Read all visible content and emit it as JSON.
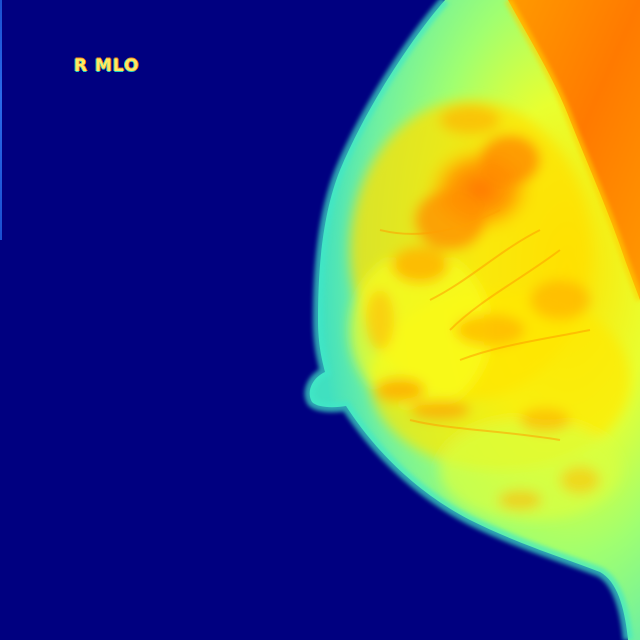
{
  "image": {
    "view_label": "R MLO",
    "colormap": "jet",
    "colors": {
      "background": "#000080",
      "skin_edge": "#40e0c0",
      "fatty_tissue": "#80ff80",
      "glandular_tissue": "#ffd000",
      "dense_tissue": "#ff8000",
      "muscle": "#ff7000"
    }
  }
}
